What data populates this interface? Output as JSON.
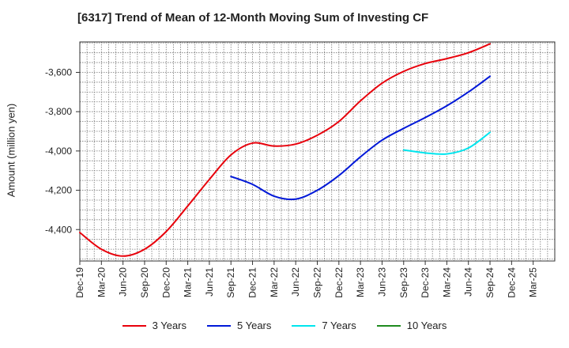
{
  "chart_data": {
    "type": "line",
    "title": "[6317]  Trend of Mean of 12-Month Moving Sum of Investing CF",
    "xlabel": "",
    "ylabel": "Amount (million yen)",
    "categories": [
      "Dec-19",
      "Mar-20",
      "Jun-20",
      "Sep-20",
      "Dec-20",
      "Mar-21",
      "Jun-21",
      "Sep-21",
      "Dec-21",
      "Mar-22",
      "Jun-22",
      "Sep-22",
      "Dec-22",
      "Mar-23",
      "Jun-23",
      "Sep-23",
      "Dec-23",
      "Mar-24",
      "Jun-24",
      "Sep-24",
      "Dec-24",
      "Mar-25"
    ],
    "yticks": [
      -4400,
      -4200,
      -4000,
      -3800,
      -3600
    ],
    "ytick_labels": [
      "-4,400",
      "-4,200",
      "-4,000",
      "-3,800",
      "-3,600"
    ],
    "ylim": [
      -4560,
      -3445
    ],
    "grid": true,
    "legend_position": "bottom",
    "series": [
      {
        "name": "3 Years",
        "color": "#e8000b",
        "values": [
          -4415,
          -4500,
          -4535,
          -4500,
          -4410,
          -4280,
          -4145,
          -4020,
          -3960,
          -3975,
          -3965,
          -3920,
          -3850,
          -3745,
          -3655,
          -3595,
          -3555,
          -3530,
          -3500,
          -3455,
          null,
          null
        ]
      },
      {
        "name": "5 Years",
        "color": "#0018d8",
        "values": [
          null,
          null,
          null,
          null,
          null,
          null,
          null,
          -4130,
          -4170,
          -4230,
          -4245,
          -4200,
          -4125,
          -4030,
          -3945,
          -3885,
          -3830,
          -3770,
          -3700,
          -3620,
          null,
          null
        ]
      },
      {
        "name": "7 Years",
        "color": "#00e5ee",
        "values": [
          null,
          null,
          null,
          null,
          null,
          null,
          null,
          null,
          null,
          null,
          null,
          null,
          null,
          null,
          null,
          -3995,
          -4010,
          -4015,
          -3985,
          -3905,
          null,
          null
        ]
      },
      {
        "name": "10 Years",
        "color": "#1e8b1e",
        "values": [
          null,
          null,
          null,
          null,
          null,
          null,
          null,
          null,
          null,
          null,
          null,
          null,
          null,
          null,
          null,
          null,
          null,
          null,
          null,
          null,
          null,
          null
        ]
      }
    ]
  }
}
